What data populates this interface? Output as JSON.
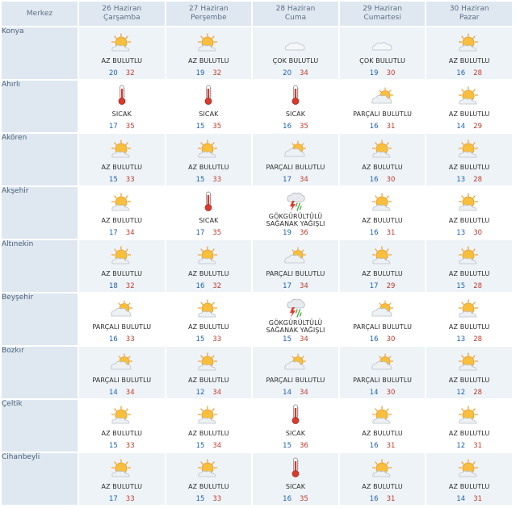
{
  "header": {
    "merkez": "Merkez",
    "days": [
      {
        "date": "26 Haziran",
        "weekday": "Çarşamba"
      },
      {
        "date": "27 Haziran",
        "weekday": "Perşembe"
      },
      {
        "date": "28 Haziran",
        "weekday": "Cuma"
      },
      {
        "date": "29 Haziran",
        "weekday": "Cumartesi"
      },
      {
        "date": "30 Haziran",
        "weekday": "Pazar"
      }
    ]
  },
  "colors": {
    "header_bg": "#dfe8f1",
    "min_temp": "#1b5fb5",
    "max_temp": "#c0392b"
  },
  "rows": [
    {
      "city": "Konya",
      "days": [
        {
          "icon": "partly-sunny-icon",
          "desc": "AZ BULUTLU",
          "min": "20",
          "max": "32"
        },
        {
          "icon": "partly-sunny-icon",
          "desc": "AZ BULUTLU",
          "min": "19",
          "max": "32"
        },
        {
          "icon": "cloud-icon",
          "desc": "ÇOK BULUTLU",
          "min": "20",
          "max": "34"
        },
        {
          "icon": "cloud-icon",
          "desc": "ÇOK BULUTLU",
          "min": "19",
          "max": "30"
        },
        {
          "icon": "partly-sunny-icon",
          "desc": "AZ BULUTLU",
          "min": "16",
          "max": "28"
        }
      ]
    },
    {
      "city": "Ahırlı",
      "days": [
        {
          "icon": "thermometer-icon",
          "desc": "SICAK",
          "min": "17",
          "max": "35"
        },
        {
          "icon": "thermometer-icon",
          "desc": "SICAK",
          "min": "15",
          "max": "35"
        },
        {
          "icon": "thermometer-icon",
          "desc": "SICAK",
          "min": "16",
          "max": "35"
        },
        {
          "icon": "partly-cloudy-icon",
          "desc": "PARÇALI BULUTLU",
          "min": "16",
          "max": "31"
        },
        {
          "icon": "partly-sunny-icon",
          "desc": "AZ BULUTLU",
          "min": "14",
          "max": "29"
        }
      ]
    },
    {
      "city": "Akören",
      "days": [
        {
          "icon": "partly-sunny-icon",
          "desc": "AZ BULUTLU",
          "min": "15",
          "max": "33"
        },
        {
          "icon": "partly-sunny-icon",
          "desc": "AZ BULUTLU",
          "min": "15",
          "max": "33"
        },
        {
          "icon": "partly-cloudy-icon",
          "desc": "PARÇALI BULUTLU",
          "min": "17",
          "max": "34"
        },
        {
          "icon": "partly-sunny-icon",
          "desc": "AZ BULUTLU",
          "min": "16",
          "max": "30"
        },
        {
          "icon": "partly-sunny-icon",
          "desc": "AZ BULUTLU",
          "min": "13",
          "max": "28"
        }
      ]
    },
    {
      "city": "Akşehir",
      "days": [
        {
          "icon": "partly-sunny-icon",
          "desc": "AZ BULUTLU",
          "min": "17",
          "max": "34"
        },
        {
          "icon": "thermometer-icon",
          "desc": "SICAK",
          "min": "17",
          "max": "35"
        },
        {
          "icon": "thunderstorm-icon",
          "desc": "GÖKGÜRÜLTÜLÜ SAĞANAK YAĞIŞLI",
          "min": "19",
          "max": "36"
        },
        {
          "icon": "partly-sunny-icon",
          "desc": "AZ BULUTLU",
          "min": "16",
          "max": "31"
        },
        {
          "icon": "partly-sunny-icon",
          "desc": "AZ BULUTLU",
          "min": "13",
          "max": "30"
        }
      ]
    },
    {
      "city": "Altınekin",
      "days": [
        {
          "icon": "partly-sunny-icon",
          "desc": "AZ BULUTLU",
          "min": "18",
          "max": "32"
        },
        {
          "icon": "partly-sunny-icon",
          "desc": "AZ BULUTLU",
          "min": "16",
          "max": "32"
        },
        {
          "icon": "partly-cloudy-icon",
          "desc": "PARÇALI BULUTLU",
          "min": "17",
          "max": "34"
        },
        {
          "icon": "partly-sunny-icon",
          "desc": "AZ BULUTLU",
          "min": "17",
          "max": "29"
        },
        {
          "icon": "partly-sunny-icon",
          "desc": "AZ BULUTLU",
          "min": "15",
          "max": "28"
        }
      ]
    },
    {
      "city": "Beyşehir",
      "days": [
        {
          "icon": "partly-cloudy-icon",
          "desc": "PARÇALI BULUTLU",
          "min": "16",
          "max": "33"
        },
        {
          "icon": "partly-sunny-icon",
          "desc": "AZ BULUTLU",
          "min": "15",
          "max": "33"
        },
        {
          "icon": "thunderstorm-icon",
          "desc": "GÖKGÜRÜLTÜLÜ SAĞANAK YAĞIŞLI",
          "min": "15",
          "max": "34"
        },
        {
          "icon": "partly-cloudy-icon",
          "desc": "PARÇALI BULUTLU",
          "min": "16",
          "max": "30"
        },
        {
          "icon": "partly-sunny-icon",
          "desc": "AZ BULUTLU",
          "min": "13",
          "max": "28"
        }
      ]
    },
    {
      "city": "Bozkır",
      "days": [
        {
          "icon": "partly-cloudy-icon",
          "desc": "PARÇALI BULUTLU",
          "min": "14",
          "max": "34"
        },
        {
          "icon": "partly-sunny-icon",
          "desc": "AZ BULUTLU",
          "min": "12",
          "max": "34"
        },
        {
          "icon": "partly-cloudy-icon",
          "desc": "PARÇALI BULUTLU",
          "min": "14",
          "max": "34"
        },
        {
          "icon": "partly-cloudy-icon",
          "desc": "PARÇALI BULUTLU",
          "min": "14",
          "max": "30"
        },
        {
          "icon": "partly-sunny-icon",
          "desc": "AZ BULUTLU",
          "min": "12",
          "max": "28"
        }
      ]
    },
    {
      "city": "Çeltik",
      "days": [
        {
          "icon": "partly-sunny-icon",
          "desc": "AZ BULUTLU",
          "min": "15",
          "max": "33"
        },
        {
          "icon": "partly-sunny-icon",
          "desc": "AZ BULUTLU",
          "min": "15",
          "max": "34"
        },
        {
          "icon": "thermometer-icon",
          "desc": "SICAK",
          "min": "15",
          "max": "36"
        },
        {
          "icon": "partly-sunny-icon",
          "desc": "AZ BULUTLU",
          "min": "16",
          "max": "31"
        },
        {
          "icon": "partly-sunny-icon",
          "desc": "AZ BULUTLU",
          "min": "12",
          "max": "31"
        }
      ]
    },
    {
      "city": "Cihanbeyli",
      "days": [
        {
          "icon": "partly-sunny-icon",
          "desc": "AZ BULUTLU",
          "min": "17",
          "max": "33"
        },
        {
          "icon": "partly-sunny-icon",
          "desc": "AZ BULUTLU",
          "min": "15",
          "max": "33"
        },
        {
          "icon": "thermometer-icon",
          "desc": "SICAK",
          "min": "16",
          "max": "35"
        },
        {
          "icon": "partly-sunny-icon",
          "desc": "AZ BULUTLU",
          "min": "16",
          "max": "31"
        },
        {
          "icon": "partly-sunny-icon",
          "desc": "AZ BULUTLU",
          "min": "14",
          "max": "31"
        }
      ]
    }
  ]
}
